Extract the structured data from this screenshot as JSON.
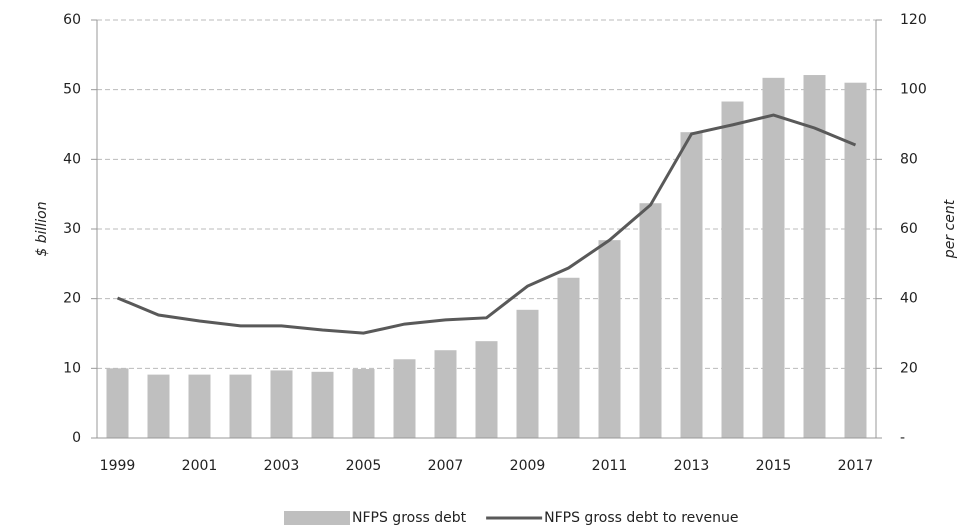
{
  "chart_data": {
    "type": "bar",
    "categories": [
      "1999",
      null,
      "2001",
      null,
      "2003",
      null,
      "2005",
      null,
      "2007",
      null,
      "2009",
      null,
      "2011",
      null,
      "2013",
      null,
      "2015",
      null,
      "2017"
    ],
    "ylabel": "$ billion",
    "y2label": "per cent",
    "ylim": [
      0,
      60
    ],
    "yticks": [
      0,
      10,
      20,
      30,
      40,
      50,
      60
    ],
    "y2lim": [
      0,
      120
    ],
    "y2ticks": [
      {
        "value": 0,
        "label": "-"
      },
      20,
      40,
      60,
      80,
      100,
      120
    ],
    "grid": true,
    "legend": "bottom",
    "series": [
      {
        "name": "NFPS gross debt",
        "type": "bar",
        "color": "#bfbfbf",
        "values": [
          10,
          9.1,
          9.1,
          9.1,
          9.7,
          9.5,
          9.9,
          11.3,
          12.6,
          13.9,
          18.4,
          23,
          28.4,
          33.7,
          43.9,
          48.3,
          51.7,
          52.1,
          51
        ]
      },
      {
        "name": "NFPS gross debt to revenue",
        "type": "line",
        "axis": "y2",
        "color": "#595959",
        "values": [
          40.2,
          35.3,
          33.6,
          32.2,
          32.2,
          31,
          30.1,
          32.7,
          33.9,
          34.5,
          43.6,
          48.8,
          56.8,
          66.9,
          87.3,
          89.9,
          92.7,
          89,
          84.1
        ]
      }
    ]
  }
}
